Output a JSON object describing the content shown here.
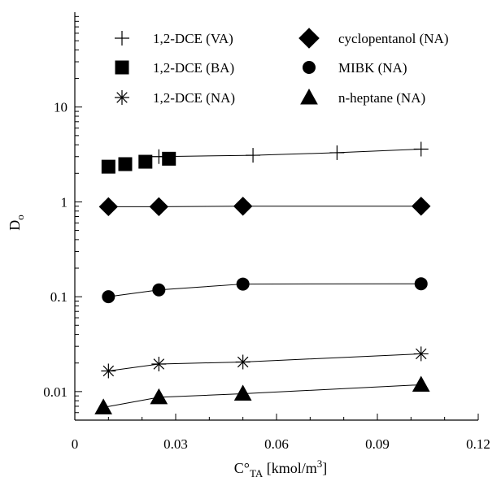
{
  "chart_data": {
    "type": "scatter",
    "xlabel": "C°TA [kmol/m3]",
    "xlabel_parts": {
      "base": "C",
      "degree": "°",
      "sub": "TA",
      "rest": " [kmol/m",
      "sup": "3",
      "close": "]"
    },
    "ylabel": "Do",
    "ylabel_parts": {
      "base": "D",
      "sub": "o"
    },
    "xlim": [
      0,
      0.12
    ],
    "ylim": [
      0.005,
      100
    ],
    "yscale": "log",
    "x_ticks": [
      0,
      0.03,
      0.06,
      0.09,
      0.12
    ],
    "x_tick_labels": [
      "0",
      "0.03",
      "0.06",
      "0.09",
      "0.12"
    ],
    "y_ticks": [
      0.01,
      0.1,
      1,
      10
    ],
    "y_tick_labels": [
      "0.01",
      "0.1",
      "1",
      "10"
    ],
    "grid": false,
    "legend_position": "top",
    "series": [
      {
        "name": "1,2-DCE (VA)",
        "marker": "plus",
        "line": true,
        "x": [
          0.025,
          0.053,
          0.078,
          0.103
        ],
        "y": [
          3.0,
          3.1,
          3.3,
          3.6
        ]
      },
      {
        "name": "1,2-DCE (BA)",
        "marker": "square",
        "line": false,
        "x": [
          0.01,
          0.015,
          0.021,
          0.028
        ],
        "y": [
          2.35,
          2.5,
          2.65,
          2.85
        ]
      },
      {
        "name": "1,2-DCE (NA)",
        "marker": "asterisk",
        "line": true,
        "x": [
          0.01,
          0.025,
          0.05,
          0.103
        ],
        "y": [
          0.0165,
          0.0195,
          0.0205,
          0.025
        ]
      },
      {
        "name": "cyclopentanol (NA)",
        "marker": "diamond",
        "line": true,
        "x": [
          0.01,
          0.025,
          0.05,
          0.103
        ],
        "y": [
          0.89,
          0.89,
          0.9,
          0.9
        ]
      },
      {
        "name": "MIBK (NA)",
        "marker": "circle",
        "line": true,
        "x": [
          0.01,
          0.025,
          0.05,
          0.103
        ],
        "y": [
          0.1,
          0.118,
          0.136,
          0.137
        ]
      },
      {
        "name": "n-heptane (NA)",
        "marker": "triangle",
        "line": true,
        "x": [
          0.0085,
          0.025,
          0.05,
          0.103
        ],
        "y": [
          0.0068,
          0.0087,
          0.0095,
          0.0118
        ]
      }
    ]
  }
}
